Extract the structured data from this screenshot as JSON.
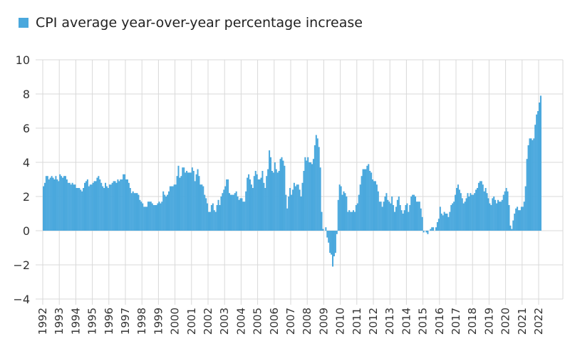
{
  "chart_data": {
    "type": "bar",
    "series": [
      {
        "name": "CPI average year-over-year percentage increase",
        "color": "#4aa8dd",
        "values": [
          2.6,
          2.8,
          3.2,
          3.2,
          3.0,
          3.1,
          3.2,
          3.1,
          3.0,
          3.2,
          3.0,
          2.9,
          3.3,
          3.2,
          3.1,
          3.2,
          3.2,
          3.0,
          2.8,
          2.8,
          2.7,
          2.8,
          2.7,
          2.7,
          2.5,
          2.5,
          2.5,
          2.4,
          2.3,
          2.5,
          2.8,
          2.9,
          3.0,
          2.6,
          2.7,
          2.7,
          2.8,
          2.9,
          2.9,
          3.1,
          3.2,
          3.0,
          2.8,
          2.6,
          2.5,
          2.8,
          2.6,
          2.5,
          2.7,
          2.7,
          2.8,
          2.9,
          2.9,
          2.8,
          3.0,
          2.9,
          3.0,
          3.0,
          3.3,
          3.3,
          3.0,
          3.0,
          2.8,
          2.5,
          2.2,
          2.3,
          2.2,
          2.2,
          2.2,
          2.1,
          1.8,
          1.7,
          1.6,
          1.4,
          1.4,
          1.4,
          1.7,
          1.7,
          1.7,
          1.6,
          1.5,
          1.5,
          1.5,
          1.6,
          1.7,
          1.6,
          1.7,
          2.3,
          2.1,
          2.0,
          2.1,
          2.3,
          2.6,
          2.6,
          2.6,
          2.7,
          2.7,
          3.2,
          3.8,
          3.1,
          3.2,
          3.7,
          3.7,
          3.4,
          3.5,
          3.4,
          3.4,
          3.4,
          3.7,
          3.5,
          2.9,
          3.3,
          3.6,
          3.2,
          2.7,
          2.7,
          2.6,
          2.1,
          1.9,
          1.6,
          1.1,
          1.1,
          1.5,
          1.6,
          1.2,
          1.1,
          1.5,
          1.8,
          1.5,
          2.0,
          2.2,
          2.4,
          2.6,
          3.0,
          3.0,
          2.2,
          2.1,
          2.1,
          2.1,
          2.2,
          2.3,
          2.0,
          1.8,
          1.9,
          1.9,
          1.7,
          1.7,
          2.3,
          3.1,
          3.3,
          3.0,
          2.7,
          2.5,
          3.2,
          3.5,
          3.3,
          3.0,
          3.0,
          3.1,
          3.5,
          2.8,
          2.5,
          3.2,
          3.6,
          4.7,
          4.3,
          3.5,
          3.4,
          4.0,
          3.6,
          3.4,
          3.5,
          4.2,
          4.3,
          4.1,
          3.8,
          2.1,
          1.3,
          2.0,
          2.5,
          2.1,
          2.4,
          2.8,
          2.6,
          2.7,
          2.7,
          2.4,
          2.0,
          2.8,
          3.5,
          4.3,
          4.1,
          4.3,
          4.0,
          4.0,
          3.9,
          4.2,
          5.0,
          5.6,
          5.4,
          4.9,
          3.7,
          1.1,
          0.1,
          0.0,
          0.2,
          -0.4,
          -0.7,
          -1.3,
          -1.4,
          -2.1,
          -1.5,
          -1.3,
          -0.2,
          1.8,
          2.7,
          2.6,
          2.1,
          2.3,
          2.2,
          2.0,
          1.1,
          1.2,
          1.1,
          1.1,
          1.2,
          1.1,
          1.5,
          1.6,
          2.1,
          2.7,
          3.2,
          3.6,
          3.6,
          3.6,
          3.8,
          3.9,
          3.5,
          3.4,
          3.0,
          2.9,
          2.9,
          2.7,
          2.3,
          1.7,
          1.7,
          1.4,
          1.7,
          2.0,
          2.2,
          1.8,
          1.7,
          1.6,
          2.0,
          1.5,
          1.1,
          1.4,
          1.8,
          2.0,
          1.5,
          1.2,
          1.0,
          1.2,
          1.5,
          1.6,
          1.1,
          1.5,
          2.0,
          2.1,
          2.1,
          2.0,
          1.7,
          1.7,
          1.7,
          1.3,
          0.8,
          -0.1,
          0.0,
          -0.1,
          -0.2,
          0.0,
          0.1,
          0.2,
          0.2,
          0.0,
          0.2,
          0.5,
          0.7,
          1.4,
          1.0,
          0.9,
          1.1,
          1.0,
          1.0,
          0.8,
          1.1,
          1.5,
          1.6,
          1.7,
          2.1,
          2.5,
          2.7,
          2.4,
          2.2,
          1.9,
          1.6,
          1.7,
          1.9,
          2.2,
          2.0,
          2.2,
          2.1,
          2.1,
          2.2,
          2.4,
          2.5,
          2.8,
          2.9,
          2.9,
          2.7,
          2.3,
          2.5,
          2.2,
          1.9,
          1.6,
          1.5,
          1.9,
          2.0,
          1.8,
          1.6,
          1.8,
          1.7,
          1.7,
          1.8,
          2.1,
          2.3,
          2.5,
          2.3,
          1.5,
          0.3,
          0.1,
          0.6,
          1.0,
          1.3,
          1.4,
          1.2,
          1.2,
          1.4,
          1.4,
          1.7,
          2.6,
          4.2,
          5.0,
          5.4,
          5.4,
          5.3,
          5.4,
          6.2,
          6.8,
          7.0,
          7.5,
          7.9
        ]
      }
    ],
    "categories": [
      "1992",
      null,
      null,
      null,
      null,
      null,
      null,
      null,
      null,
      null,
      null,
      null,
      "1993",
      null,
      null,
      null,
      null,
      null,
      null,
      null,
      null,
      null,
      null,
      null,
      "1994",
      null,
      null,
      null,
      null,
      null,
      null,
      null,
      null,
      null,
      null,
      null,
      "1995",
      null,
      null,
      null,
      null,
      null,
      null,
      null,
      null,
      null,
      null,
      null,
      "1996",
      null,
      null,
      null,
      null,
      null,
      null,
      null,
      null,
      null,
      null,
      null,
      "1997",
      null,
      null,
      null,
      null,
      null,
      null,
      null,
      null,
      null,
      null,
      null,
      "1998",
      null,
      null,
      null,
      null,
      null,
      null,
      null,
      null,
      null,
      null,
      null,
      "1999",
      null,
      null,
      null,
      null,
      null,
      null,
      null,
      null,
      null,
      null,
      null,
      "2000",
      null,
      null,
      null,
      null,
      null,
      null,
      null,
      null,
      null,
      null,
      null,
      "2001",
      null,
      null,
      null,
      null,
      null,
      null,
      null,
      null,
      null,
      null,
      null,
      "2002",
      null,
      null,
      null,
      null,
      null,
      null,
      null,
      null,
      null,
      null,
      null,
      "2003",
      null,
      null,
      null,
      null,
      null,
      null,
      null,
      null,
      null,
      null,
      null,
      "2004",
      null,
      null,
      null,
      null,
      null,
      null,
      null,
      null,
      null,
      null,
      null,
      "2005",
      null,
      null,
      null,
      null,
      null,
      null,
      null,
      null,
      null,
      null,
      null,
      "2006",
      null,
      null,
      null,
      null,
      null,
      null,
      null,
      null,
      null,
      null,
      null,
      "2007",
      null,
      null,
      null,
      null,
      null,
      null,
      null,
      null,
      null,
      null,
      null,
      "2008",
      null,
      null,
      null,
      null,
      null,
      null,
      null,
      null,
      null,
      null,
      null,
      "2009",
      null,
      null,
      null,
      null,
      null,
      null,
      null,
      null,
      null,
      null,
      null,
      "2010",
      null,
      null,
      null,
      null,
      null,
      null,
      null,
      null,
      null,
      null,
      null,
      "2011",
      null,
      null,
      null,
      null,
      null,
      null,
      null,
      null,
      null,
      null,
      null,
      "2012",
      null,
      null,
      null,
      null,
      null,
      null,
      null,
      null,
      null,
      null,
      null,
      "2013",
      null,
      null,
      null,
      null,
      null,
      null,
      null,
      null,
      null,
      null,
      null,
      "2014",
      null,
      null,
      null,
      null,
      null,
      null,
      null,
      null,
      null,
      null,
      null,
      "2015",
      null,
      null,
      null,
      null,
      null,
      null,
      null,
      null,
      null,
      null,
      null,
      "2016",
      null,
      null,
      null,
      null,
      null,
      null,
      null,
      null,
      null,
      null,
      null,
      "2017",
      null,
      null,
      null,
      null,
      null,
      null,
      null,
      null,
      null,
      null,
      null,
      "2018",
      null,
      null,
      null,
      null,
      null,
      null,
      null,
      null,
      null,
      null,
      null,
      "2019",
      null,
      null,
      null,
      null,
      null,
      null,
      null,
      null,
      null,
      null,
      null,
      "2020",
      null,
      null,
      null,
      null,
      null,
      null,
      null,
      null,
      null,
      null,
      null,
      "2021",
      null,
      null,
      null,
      null,
      null,
      null,
      null,
      null,
      null,
      null,
      null,
      "2022",
      null
    ],
    "ylim": [
      -4,
      10
    ],
    "yticks": [
      {
        "value": -4,
        "label": "−4"
      },
      {
        "value": -2,
        "label": "−2"
      },
      0,
      2,
      4,
      6,
      8,
      10
    ],
    "grid": true,
    "legend": "top-left"
  }
}
